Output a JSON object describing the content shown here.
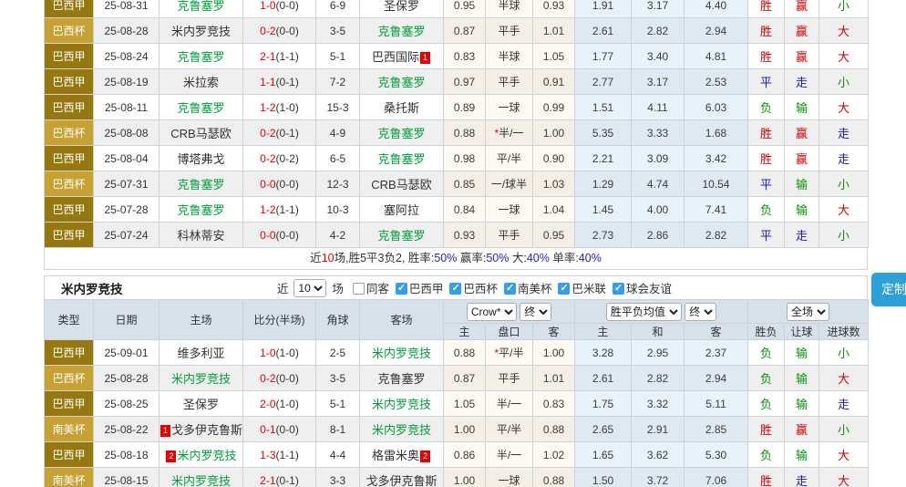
{
  "league_colors": {
    "巴西甲": "#97780f",
    "巴西杯": "#c7a233",
    "南美杯": "#c7a233"
  },
  "result_colors": {
    "胜": "#d50000",
    "赢": "#d50000",
    "大": "#d50000",
    "平": "#1a1acd",
    "走": "#1a1acd",
    "负": "#089408",
    "输": "#089408",
    "小": "#089408"
  },
  "top_table": {
    "rows": [
      {
        "league": "巴西甲",
        "date": "25-08-31",
        "home": {
          "name": "克鲁塞罗",
          "green": true
        },
        "score": "1-0",
        "half": "(0-0)",
        "corner": "6-9",
        "away": {
          "name": "圣保罗",
          "green": false
        },
        "ah_home": "0.95",
        "handicap": "半球",
        "star": false,
        "ah_away": "0.93",
        "eu_home": "1.91",
        "eu_draw": "3.17",
        "eu_away": "4.40",
        "res_wdl": "胜",
        "res_ah": "赢",
        "res_ou": "小"
      },
      {
        "league": "巴西杯",
        "date": "25-08-28",
        "home": {
          "name": "米内罗竞技",
          "green": false
        },
        "score": "0-2",
        "half": "(0-0)",
        "corner": "3-5",
        "away": {
          "name": "克鲁塞罗",
          "green": true
        },
        "ah_home": "0.87",
        "handicap": "平手",
        "star": false,
        "ah_away": "1.01",
        "eu_home": "2.61",
        "eu_draw": "2.82",
        "eu_away": "2.94",
        "res_wdl": "胜",
        "res_ah": "赢",
        "res_ou": "大"
      },
      {
        "league": "巴西甲",
        "date": "25-08-24",
        "home": {
          "name": "克鲁塞罗",
          "green": true
        },
        "score": "2-1",
        "half": "(1-1)",
        "corner": "5-1",
        "away": {
          "name": "巴西国际",
          "green": false,
          "badge": "1",
          "badge_pos": "after"
        },
        "ah_home": "0.83",
        "handicap": "半球",
        "star": false,
        "ah_away": "1.05",
        "eu_home": "1.77",
        "eu_draw": "3.40",
        "eu_away": "4.81",
        "res_wdl": "胜",
        "res_ah": "赢",
        "res_ou": "大"
      },
      {
        "league": "巴西甲",
        "date": "25-08-19",
        "home": {
          "name": "米拉索",
          "green": false
        },
        "score": "1-1",
        "half": "(0-1)",
        "corner": "7-2",
        "away": {
          "name": "克鲁塞罗",
          "green": true
        },
        "ah_home": "0.97",
        "handicap": "平手",
        "star": false,
        "ah_away": "0.91",
        "eu_home": "2.77",
        "eu_draw": "3.17",
        "eu_away": "2.53",
        "res_wdl": "平",
        "res_ah": "走",
        "res_ou": "小"
      },
      {
        "league": "巴西甲",
        "date": "25-08-11",
        "home": {
          "name": "克鲁塞罗",
          "green": true
        },
        "score": "1-2",
        "half": "(1-0)",
        "corner": "15-3",
        "away": {
          "name": "桑托斯",
          "green": false
        },
        "ah_home": "0.89",
        "handicap": "一球",
        "star": false,
        "ah_away": "0.99",
        "eu_home": "1.51",
        "eu_draw": "4.11",
        "eu_away": "6.03",
        "res_wdl": "负",
        "res_ah": "输",
        "res_ou": "大"
      },
      {
        "league": "巴西杯",
        "date": "25-08-08",
        "home": {
          "name": "CRB马瑟欧",
          "green": false
        },
        "score": "0-2",
        "half": "(0-1)",
        "corner": "4-9",
        "away": {
          "name": "克鲁塞罗",
          "green": true
        },
        "ah_home": "0.88",
        "handicap": "半/一",
        "star": true,
        "ah_away": "1.00",
        "eu_home": "5.35",
        "eu_draw": "3.33",
        "eu_away": "1.68",
        "res_wdl": "胜",
        "res_ah": "赢",
        "res_ou": "走"
      },
      {
        "league": "巴西甲",
        "date": "25-08-04",
        "home": {
          "name": "博塔弗戈",
          "green": false
        },
        "score": "0-2",
        "half": "(0-2)",
        "corner": "6-5",
        "away": {
          "name": "克鲁塞罗",
          "green": true
        },
        "ah_home": "0.98",
        "handicap": "平/半",
        "star": false,
        "ah_away": "0.90",
        "eu_home": "2.21",
        "eu_draw": "3.09",
        "eu_away": "3.42",
        "res_wdl": "胜",
        "res_ah": "赢",
        "res_ou": "走"
      },
      {
        "league": "巴西杯",
        "date": "25-07-31",
        "home": {
          "name": "克鲁塞罗",
          "green": true
        },
        "score": "0-0",
        "half": "(0-0)",
        "corner": "12-3",
        "away": {
          "name": "CRB马瑟欧",
          "green": false
        },
        "ah_home": "0.85",
        "handicap": "一/球半",
        "star": false,
        "ah_away": "1.03",
        "eu_home": "1.29",
        "eu_draw": "4.74",
        "eu_away": "10.54",
        "res_wdl": "平",
        "res_ah": "输",
        "res_ou": "小"
      },
      {
        "league": "巴西甲",
        "date": "25-07-28",
        "home": {
          "name": "克鲁塞罗",
          "green": true
        },
        "score": "1-2",
        "half": "(1-1)",
        "corner": "10-3",
        "away": {
          "name": "塞阿拉",
          "green": false
        },
        "ah_home": "0.84",
        "handicap": "一球",
        "star": false,
        "ah_away": "1.04",
        "eu_home": "1.45",
        "eu_draw": "4.00",
        "eu_away": "7.41",
        "res_wdl": "负",
        "res_ah": "输",
        "res_ou": "大"
      },
      {
        "league": "巴西甲",
        "date": "25-07-24",
        "home": {
          "name": "科林蒂安",
          "green": false
        },
        "score": "0-0",
        "half": "(0-0)",
        "corner": "4-2",
        "away": {
          "name": "克鲁塞罗",
          "green": true
        },
        "ah_home": "0.93",
        "handicap": "平手",
        "star": false,
        "ah_away": "0.95",
        "eu_home": "2.73",
        "eu_draw": "2.86",
        "eu_away": "2.82",
        "res_wdl": "平",
        "res_ah": "走",
        "res_ou": "小"
      }
    ],
    "summary_parts": [
      {
        "t": "近",
        "c": "#333333"
      },
      {
        "t": "10",
        "c": "#e60000"
      },
      {
        "t": "场,胜5平3负2, 胜率:",
        "c": "#333333"
      },
      {
        "t": "50%",
        "c": "#2222cc"
      },
      {
        "t": " 赢率:",
        "c": "#333333"
      },
      {
        "t": "50%",
        "c": "#2222cc"
      },
      {
        "t": " 大:",
        "c": "#333333"
      },
      {
        "t": "40%",
        "c": "#2222cc"
      },
      {
        "t": " 单率:",
        "c": "#333333"
      },
      {
        "t": "40%",
        "c": "#2222cc"
      }
    ]
  },
  "section": {
    "title": "米内罗竞技",
    "recent_prefix": "近",
    "recent_value": "10",
    "recent_suffix": "场",
    "checkboxes": [
      {
        "label": "同客",
        "checked": false
      },
      {
        "label": "巴西甲",
        "checked": true
      },
      {
        "label": "巴西杯",
        "checked": true
      },
      {
        "label": "南美杯",
        "checked": true
      },
      {
        "label": "巴米联",
        "checked": true
      },
      {
        "label": "球会友谊",
        "checked": true
      }
    ],
    "custom_button": "定制"
  },
  "bottom_table": {
    "static_headers": [
      "类型",
      "日期",
      "主场",
      "比分(半场)",
      "角球",
      "客场"
    ],
    "dropdowns": {
      "bookmaker": "Crow*",
      "asian_time": "终",
      "europe_avg": "胜平负均值",
      "europe_time": "终",
      "scope": "全场"
    },
    "sub_headers": [
      "主",
      "盘口",
      "客",
      "主",
      "和",
      "客",
      "胜负",
      "让球",
      "进球数"
    ],
    "rows": [
      {
        "league": "巴西甲",
        "date": "25-09-01",
        "home": {
          "name": "维多利亚",
          "green": false
        },
        "score": "1-0",
        "half": "(1-0)",
        "corner": "2-5",
        "away": {
          "name": "米内罗竞技",
          "green": true
        },
        "ah_home": "0.88",
        "handicap": "平/半",
        "star": true,
        "ah_away": "1.00",
        "eu_home": "3.28",
        "eu_draw": "2.95",
        "eu_away": "2.37",
        "res_wdl": "负",
        "res_ah": "输",
        "res_ou": "小"
      },
      {
        "league": "巴西杯",
        "date": "25-08-28",
        "home": {
          "name": "米内罗竞技",
          "green": true
        },
        "score": "0-2",
        "half": "(0-0)",
        "corner": "3-5",
        "away": {
          "name": "克鲁塞罗",
          "green": false
        },
        "ah_home": "0.87",
        "handicap": "平手",
        "star": false,
        "ah_away": "1.01",
        "eu_home": "2.61",
        "eu_draw": "2.82",
        "eu_away": "2.94",
        "res_wdl": "负",
        "res_ah": "输",
        "res_ou": "大"
      },
      {
        "league": "巴西甲",
        "date": "25-08-25",
        "home": {
          "name": "圣保罗",
          "green": false
        },
        "score": "2-0",
        "half": "(1-0)",
        "corner": "5-1",
        "away": {
          "name": "米内罗竞技",
          "green": true
        },
        "ah_home": "1.05",
        "handicap": "半/一",
        "star": false,
        "ah_away": "0.83",
        "eu_home": "1.75",
        "eu_draw": "3.32",
        "eu_away": "5.11",
        "res_wdl": "负",
        "res_ah": "输",
        "res_ou": "走"
      },
      {
        "league": "南美杯",
        "date": "25-08-22",
        "home": {
          "name": "戈多伊克鲁斯",
          "green": false,
          "badge": "1",
          "badge_pos": "before"
        },
        "score": "0-1",
        "half": "(0-0)",
        "corner": "8-1",
        "away": {
          "name": "米内罗竞技",
          "green": true
        },
        "ah_home": "1.00",
        "handicap": "平/半",
        "star": false,
        "ah_away": "0.88",
        "eu_home": "2.65",
        "eu_draw": "2.91",
        "eu_away": "2.85",
        "res_wdl": "胜",
        "res_ah": "赢",
        "res_ou": "小"
      },
      {
        "league": "巴西甲",
        "date": "25-08-18",
        "home": {
          "name": "米内罗竞技",
          "green": true,
          "badge": "2",
          "badge_pos": "before"
        },
        "score": "1-3",
        "half": "(1-1)",
        "corner": "4-4",
        "away": {
          "name": "格雷米奥",
          "green": false,
          "badge": "2",
          "badge_pos": "after"
        },
        "ah_home": "0.86",
        "handicap": "半/一",
        "star": false,
        "ah_away": "1.02",
        "eu_home": "1.65",
        "eu_draw": "3.62",
        "eu_away": "5.30",
        "res_wdl": "负",
        "res_ah": "输",
        "res_ou": "大"
      },
      {
        "league": "南美杯",
        "date": "25-08-15",
        "home": {
          "name": "米内罗竞技",
          "green": true
        },
        "score": "2-1",
        "half": "(0-1)",
        "corner": "3-3",
        "away": {
          "name": "戈多伊克鲁斯",
          "green": false
        },
        "ah_home": "1.00",
        "handicap": "一球",
        "star": false,
        "ah_away": "0.88",
        "eu_home": "1.50",
        "eu_draw": "3.72",
        "eu_away": "7.06",
        "res_wdl": "胜",
        "res_ah": "走",
        "res_ou": "大"
      }
    ]
  }
}
